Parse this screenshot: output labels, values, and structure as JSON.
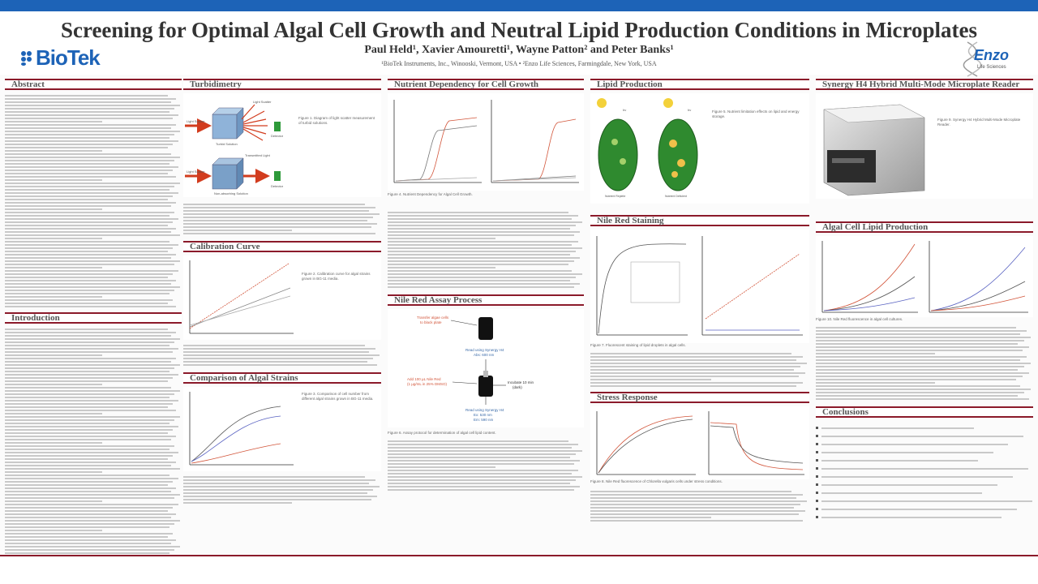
{
  "header": {
    "title": "Screening for Optimal Algal Cell Growth and Neutral Lipid Production Conditions in Microplates",
    "authors": "Paul Held¹, Xavier Amouretti¹, Wayne Patton² and Peter Banks¹",
    "affiliation": "¹BioTek Instruments, Inc., Winooski, Vermont, USA • ²Enzo Life Sciences, Farmingdale, New York, USA",
    "logo_left": "BioTek",
    "logo_right": "Enzo",
    "logo_right_sub": "Life Sciences"
  },
  "sections": {
    "abstract": "Abstract",
    "introduction": "Introduction",
    "turbidimetry": "Turbidimetry",
    "calibration": "Calibration Curve",
    "comparison": "Comparison of Algal Strains",
    "nutrient": "Nutrient Dependency for Cell Growth",
    "nile_assay": "Nile Red Assay Process",
    "lipid_production": "Lipid Production",
    "nile_staining": "Nile Red Staining",
    "stress": "Stress Response",
    "synergy": "Synergy H4 Hybrid Multi-Mode Microplate Reader",
    "algal_lipid": "Algal Cell Lipid Production",
    "conclusions": "Conclusions"
  },
  "turbidimetry_diagram": {
    "top_source": "Light Source",
    "top_sample": "Turbid Solution",
    "top_detector": "Detector",
    "top_scatter": "Light Scatter",
    "bottom_source": "Light Source",
    "bottom_sample": "Non-absorbing Solution",
    "bottom_detector": "Detector",
    "bottom_transmitted": "Transmitted Light"
  },
  "captions": {
    "turbidimetry": "Figure 1. Diagram of light scatter measurement of turbid solutions.",
    "calibration": "Figure 2. Calibration curve for algal strains grown in BG-11 media.",
    "comparison": "Figure 3. Comparison of cell number from different algal strains grown in BG-11 media.",
    "nutrient": "Figure 4. Nutrient Dependency for Algal Cell Growth.",
    "nile_assay": "Figure 6. Assay protocol for determination of algal cell lipid content.",
    "lipid_production": "Figure 5. Nutrient limitation effects on lipid and energy storage.",
    "nile_staining": "Figure 7. Fluorescent staining of lipid droplets in algal cells.",
    "stress": "Figure 8. Nile Red fluorescence of Chlorella vulgaris cells under stress conditions.",
    "synergy": "Figure 9. Synergy H4 Hybrid Multi-Mode Microplate Reader.",
    "algal_lipid": "Figure 10. Nile Red fluorescence in algal cell cultures."
  },
  "nile_assay_steps": {
    "step1": "Transfer algae cells",
    "step1b": "to black plate",
    "read1": "Read using Synergy H4",
    "read1b": "Abs: 600 nm",
    "step2": "Add 100 µL Nile Red",
    "step2b": "(1 µg/mL in 25% DMSO)",
    "incubate": "Incubate 10 min",
    "incubate_b": "(dark)",
    "read2": "Read using Synergy H4",
    "read2b": "Ex: 530 nm",
    "read2c": "Em: 590 nm"
  },
  "lipid_cells": {
    "light_label_1": "hv",
    "light_label_2": "hv",
    "cell1": "Nutrient Replete",
    "cell2": "Nutrient Deficient"
  },
  "colors": {
    "accent_bar": "#8b1a2a",
    "top_bar": "#1d63b7",
    "brand": "#1d63b7",
    "cell_green": "#2f8a2f",
    "arrow_red": "#d23c1e"
  }
}
